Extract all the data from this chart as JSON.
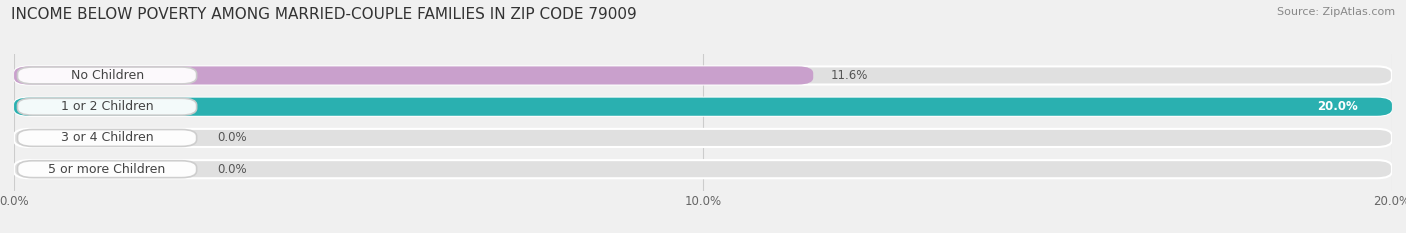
{
  "title": "INCOME BELOW POVERTY AMONG MARRIED-COUPLE FAMILIES IN ZIP CODE 79009",
  "source": "Source: ZipAtlas.com",
  "categories": [
    "No Children",
    "1 or 2 Children",
    "3 or 4 Children",
    "5 or more Children"
  ],
  "values": [
    11.6,
    20.0,
    0.0,
    0.0
  ],
  "bar_colors": [
    "#c9a0cc",
    "#2ab0b0",
    "#9fa8e0",
    "#f0a8bc"
  ],
  "xlim": [
    0,
    20.0
  ],
  "xtick_values": [
    0.0,
    10.0,
    20.0
  ],
  "xtick_labels": [
    "0.0%",
    "10.0%",
    "20.0%"
  ],
  "background_color": "#f0f0f0",
  "bar_background_color": "#e0e0e0",
  "title_fontsize": 11,
  "source_fontsize": 8,
  "label_fontsize": 9,
  "value_fontsize": 8.5,
  "tick_fontsize": 8.5,
  "bar_height": 0.58,
  "bar_gap": 0.25
}
